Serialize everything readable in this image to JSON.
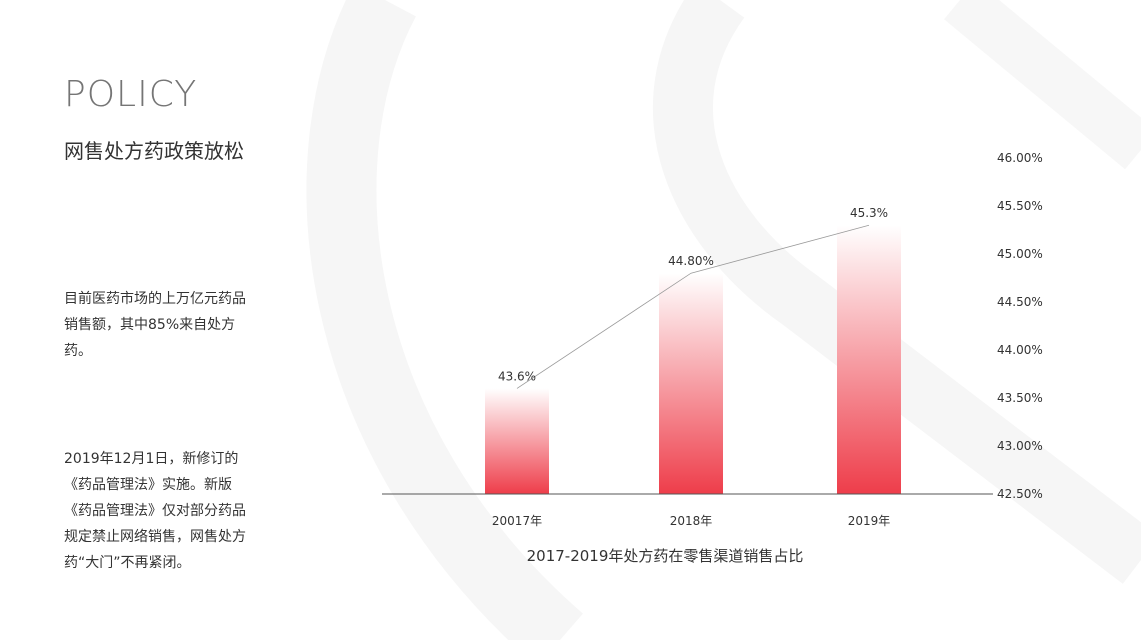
{
  "header": {
    "title": "POLICY",
    "subtitle": "网售处方药政策放松"
  },
  "paragraphs": [
    "目前医药市场的上万亿元药品销售额，其中85%来自处方药。",
    "2019年12月1日，新修订的《药品管理法》实施。新版《药品管理法》仅对部分药品规定禁止网络销售，网售处方药“大门”不再紧闭。"
  ],
  "colors": {
    "bar_bottom": "#ee3d4a",
    "bar_top": "#ffffff",
    "line": "#9a9a9a",
    "axis": "#555555",
    "background_arc": "#f5f5f5"
  },
  "chart_data": {
    "type": "bar",
    "title": "2017-2019年处方药在零售渠道销售占比",
    "categories": [
      "20017年",
      "2018年",
      "2019年"
    ],
    "values": [
      43.6,
      44.8,
      45.3
    ],
    "value_labels": [
      "43.6%",
      "44.80%",
      "45.3%"
    ],
    "overlay_line": true,
    "ylim": [
      42.5,
      46.0
    ],
    "yticks": [
      42.5,
      43.0,
      43.5,
      44.0,
      44.5,
      45.0,
      45.5,
      46.0
    ],
    "ytick_labels": [
      "42.50%",
      "43.00%",
      "43.50%",
      "44.00%",
      "44.50%",
      "45.00%",
      "45.50%",
      "46.00%"
    ],
    "y_axis_position": "right",
    "grid": false
  }
}
